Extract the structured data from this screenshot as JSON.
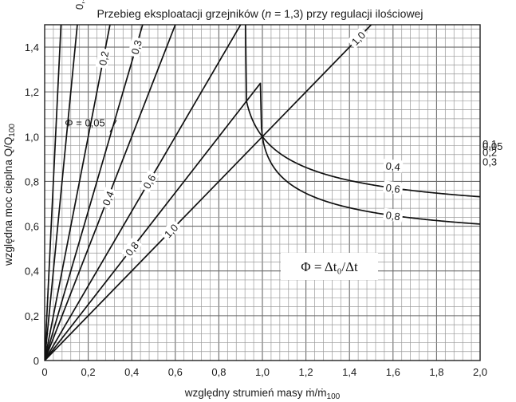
{
  "chart_data": {
    "type": "line",
    "title": "Przebieg eksploatacji grzejników (n = 1,3) przy regulacji ilościowej",
    "title_parts": {
      "before": "Przebieg eksploatacji grzejników (",
      "var": "n",
      "eq": " = 1,3) przy regulacji ilościowej"
    },
    "xlabel": "względny strumień masy ṁ/ṁ",
    "xlabel_sub": "100",
    "ylabel": "względna moc cieplna Q/Q",
    "ylabel_sub": "100",
    "xlim": [
      0,
      2.0
    ],
    "ylim": [
      0,
      1.5
    ],
    "x_ticks": [
      0,
      0.2,
      0.4,
      0.6,
      0.8,
      1.0,
      1.2,
      1.4,
      1.6,
      1.8,
      2.0
    ],
    "x_tick_labels": [
      "0",
      "0,2",
      "0,4",
      "0,6",
      "0,8",
      "1,0",
      "1,2",
      "1,4",
      "1,6",
      "1,8",
      "2,0"
    ],
    "y_ticks": [
      0,
      0.2,
      0.4,
      0.6,
      0.8,
      1.0,
      1.2,
      1.4
    ],
    "y_tick_labels": [
      "0",
      "0,2",
      "0,4",
      "0,6",
      "0,8",
      "1,0",
      "1,2",
      "1,4"
    ],
    "grid": true,
    "grid_minor_step": 0.04,
    "phi_label_prefix": "Φ = ",
    "formula": "Φ = Δt₀/Δt",
    "series": [
      {
        "name": "0,05",
        "phi": 0.05
      },
      {
        "name": "0,1",
        "phi": 0.1
      },
      {
        "name": "0,2",
        "phi": 0.2
      },
      {
        "name": "0,3",
        "phi": 0.3
      },
      {
        "name": "0,4",
        "phi": 0.4
      },
      {
        "name": "0,6",
        "phi": 0.6
      },
      {
        "name": "0,8",
        "phi": 0.8
      },
      {
        "name": "1,0",
        "phi": 1.0
      }
    ]
  }
}
